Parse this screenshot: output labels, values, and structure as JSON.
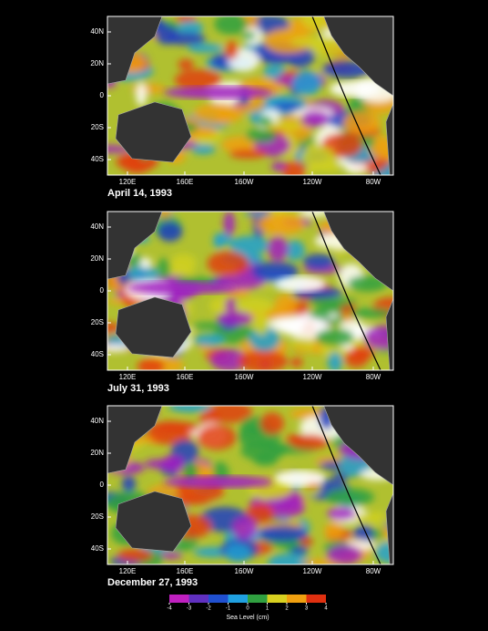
{
  "panels": [
    {
      "date": "April 14, 1993"
    },
    {
      "date": "July 31, 1993"
    },
    {
      "date": "December 27, 1993"
    }
  ],
  "lat_labels": [
    "40N",
    "20N",
    "0",
    "20S",
    "40S"
  ],
  "lon_labels": [
    "120E",
    "160E",
    "160W",
    "120W",
    "80W"
  ],
  "colorbar": {
    "ticks": [
      -4,
      -3,
      -2,
      -1,
      0,
      1,
      2,
      3,
      4
    ],
    "label": "Sea Level (cm)"
  }
}
